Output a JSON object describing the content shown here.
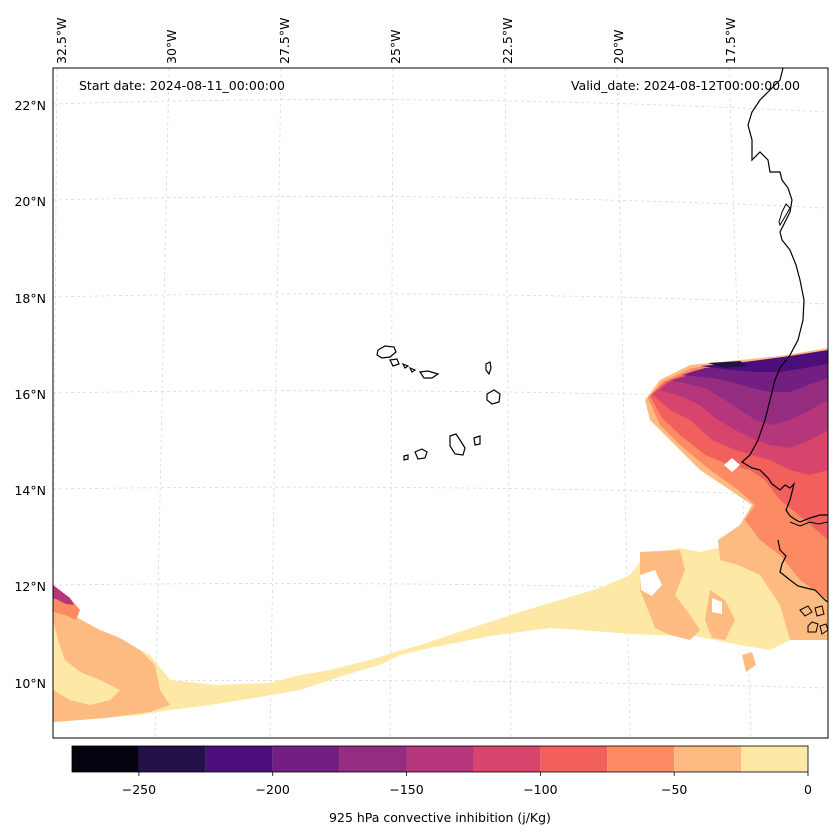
{
  "map": {
    "start_date": "Start date: 2024-08-11_00:00:00",
    "valid_date": "Valid_date: 2024-08-12T00:00:00.00",
    "lon_labels": [
      "32.5°W",
      "30°W",
      "27.5°W",
      "25°W",
      "22.5°W",
      "20°W",
      "17.5°W"
    ],
    "lat_labels": [
      "22°N",
      "20°N",
      "18°N",
      "16°N",
      "14°N",
      "12°N",
      "10°N"
    ]
  },
  "colorbar": {
    "label": "925 hPa convective inhibition (j/Kg)",
    "tick_labels": [
      "−250",
      "−200",
      "−150",
      "−100",
      "−50",
      "0"
    ],
    "levels": [
      -275,
      -250,
      -225,
      -200,
      -175,
      -150,
      -125,
      -100,
      -75,
      -50,
      -25,
      0
    ],
    "colors": [
      "#05030f",
      "#231249",
      "#4c0e7a",
      "#721f81",
      "#942c80",
      "#b5367a",
      "#d8456c",
      "#f1605d",
      "#fc8a62",
      "#febb81",
      "#fde8a6"
    ]
  },
  "colors": {
    "coastline": "#000000",
    "gridline": "#d9d9d9",
    "frame": "#000000"
  }
}
